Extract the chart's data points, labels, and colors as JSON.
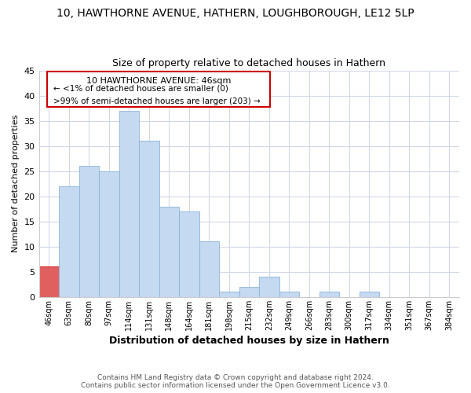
{
  "title": "10, HAWTHORNE AVENUE, HATHERN, LOUGHBOROUGH, LE12 5LP",
  "subtitle": "Size of property relative to detached houses in Hathern",
  "xlabel": "Distribution of detached houses by size in Hathern",
  "ylabel": "Number of detached properties",
  "bar_color": "#c5d9f0",
  "bar_edge_color": "#8ab4d9",
  "categories": [
    "46sqm",
    "63sqm",
    "80sqm",
    "97sqm",
    "114sqm",
    "131sqm",
    "148sqm",
    "164sqm",
    "181sqm",
    "198sqm",
    "215sqm",
    "232sqm",
    "249sqm",
    "266sqm",
    "283sqm",
    "300sqm",
    "317sqm",
    "334sqm",
    "351sqm",
    "367sqm",
    "384sqm"
  ],
  "values": [
    6,
    22,
    26,
    25,
    37,
    31,
    18,
    17,
    11,
    1,
    2,
    4,
    1,
    0,
    1,
    0,
    1,
    0,
    0,
    0,
    0
  ],
  "ylim": [
    0,
    45
  ],
  "yticks": [
    0,
    5,
    10,
    15,
    20,
    25,
    30,
    35,
    40,
    45
  ],
  "annotation_box_text_line1": "10 HAWTHORNE AVENUE: 46sqm",
  "annotation_box_text_line2": "← <1% of detached houses are smaller (0)",
  "annotation_box_text_line3": ">99% of semi-detached houses are larger (203) →",
  "annotation_box_color": "#ffffff",
  "annotation_box_edge_color": "#cc0000",
  "footer_line1": "Contains HM Land Registry data © Crown copyright and database right 2024.",
  "footer_line2": "Contains public sector information licensed under the Open Government Licence v3.0.",
  "background_color": "#ffffff",
  "grid_color": "#d0d8e8",
  "highlight_bar_index": 0,
  "highlight_bar_color": "#e06060"
}
